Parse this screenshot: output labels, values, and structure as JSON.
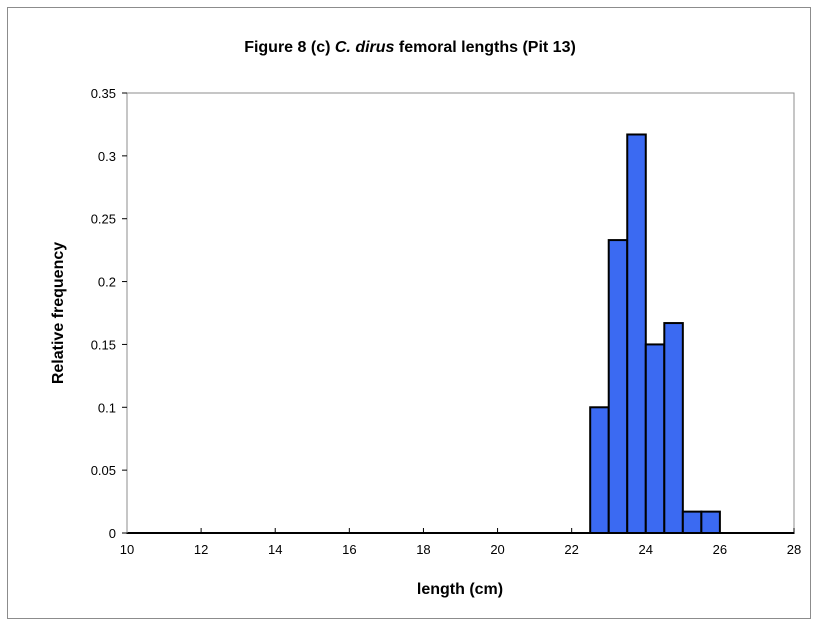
{
  "chart_data": {
    "type": "bar",
    "title": {
      "prefix": "Figure 8 (c) ",
      "italic": "C. dirus",
      "suffix": " femoral lengths (Pit 13)"
    },
    "xlabel": "length (cm)",
    "ylabel": "Relative frequency",
    "xlim": [
      10,
      28
    ],
    "ylim": [
      0,
      0.35
    ],
    "xticks": [
      10,
      12,
      14,
      16,
      18,
      20,
      22,
      24,
      26,
      28
    ],
    "yticks": [
      0,
      0.05,
      0.1,
      0.15,
      0.2,
      0.25,
      0.3,
      0.35
    ],
    "ytick_labels": [
      "0",
      "0.05",
      "0.1",
      "0.15",
      "0.2",
      "0.25",
      "0.3",
      "0.35"
    ],
    "bin_width": 0.5,
    "bins": [
      {
        "x0": 22.5,
        "value": 0.1
      },
      {
        "x0": 23.0,
        "value": 0.233
      },
      {
        "x0": 23.5,
        "value": 0.317
      },
      {
        "x0": 24.0,
        "value": 0.15
      },
      {
        "x0": 24.5,
        "value": 0.167
      },
      {
        "x0": 25.0,
        "value": 0.017
      },
      {
        "x0": 25.5,
        "value": 0.017
      }
    ],
    "grid": false,
    "legend": "none",
    "bar_color": "#3b6af2",
    "edge_color": "#000000"
  }
}
